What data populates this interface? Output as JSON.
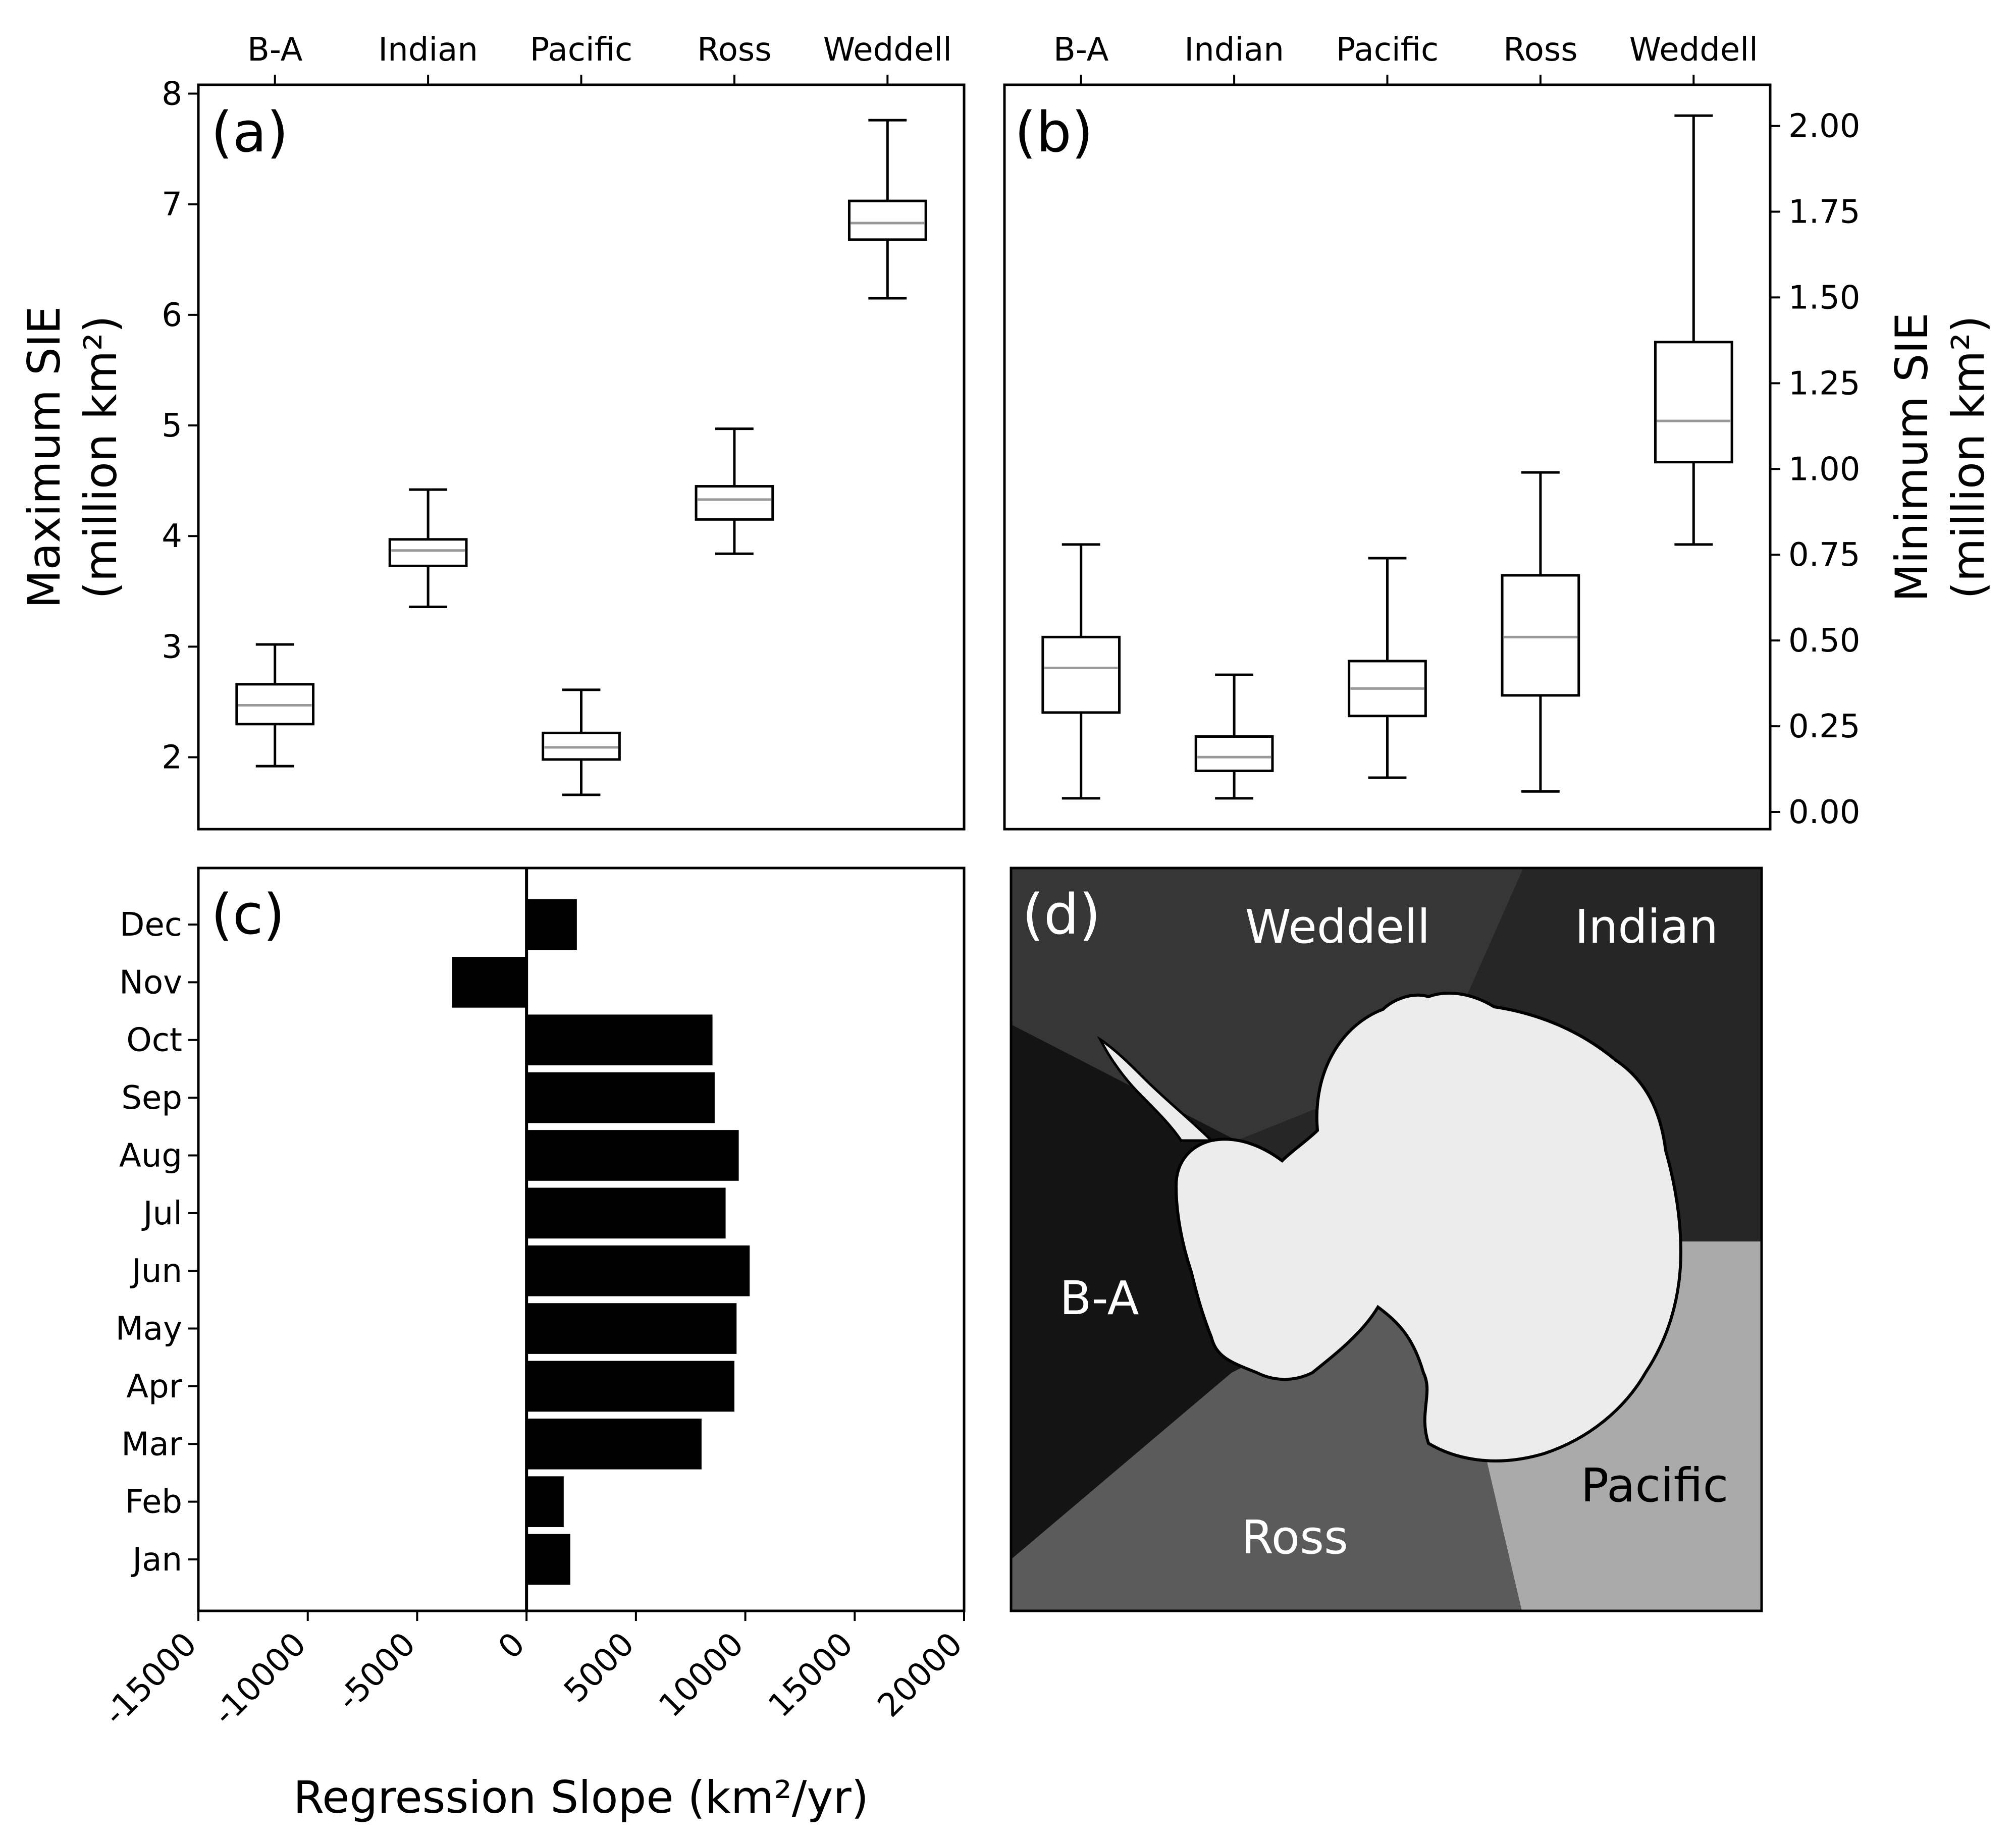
{
  "colors": {
    "box_edge": "#000000",
    "median": "#999999",
    "bar": "#000000",
    "map_land": "#ececec",
    "map_weddell": "#363636",
    "map_indian": "#262626",
    "map_ba": "#141414",
    "map_ross": "#5b5b5b",
    "map_pacific": "#aaaaaa"
  },
  "chart_data": [
    {
      "panel": "a",
      "type": "box",
      "panel_label": "(a)",
      "ylabel_line1": "Maximum SIE",
      "ylabel_line2": "(million km²)",
      "ylim": [
        1.35,
        8.08
      ],
      "yticks": [
        "2",
        "3",
        "4",
        "5",
        "6",
        "7",
        "8"
      ],
      "ytick_values": [
        2,
        3,
        4,
        5,
        6,
        7,
        8
      ],
      "categories": [
        "B-A",
        "Indian",
        "Pacific",
        "Ross",
        "Weddell"
      ],
      "boxes": [
        {
          "whislo": 1.92,
          "q1": 2.3,
          "med": 2.47,
          "q3": 2.66,
          "whishi": 3.02
        },
        {
          "whislo": 3.36,
          "q1": 3.73,
          "med": 3.87,
          "q3": 3.97,
          "whishi": 4.42
        },
        {
          "whislo": 1.66,
          "q1": 1.98,
          "med": 2.09,
          "q3": 2.22,
          "whishi": 2.61
        },
        {
          "whislo": 3.84,
          "q1": 4.15,
          "med": 4.33,
          "q3": 4.45,
          "whishi": 4.97
        },
        {
          "whislo": 6.15,
          "q1": 6.68,
          "med": 6.83,
          "q3": 7.03,
          "whishi": 7.76
        }
      ]
    },
    {
      "panel": "b",
      "type": "box",
      "panel_label": "(b)",
      "ylabel_line1": "Minimum SIE",
      "ylabel_line2": "(million km²)",
      "ylim": [
        -0.05,
        2.12
      ],
      "yticks": [
        "0.00",
        "0.25",
        "0.50",
        "0.75",
        "1.00",
        "1.25",
        "1.50",
        "1.75",
        "2.00"
      ],
      "ytick_values": [
        0,
        0.25,
        0.5,
        0.75,
        1.0,
        1.25,
        1.5,
        1.75,
        2.0
      ],
      "categories": [
        "B-A",
        "Indian",
        "Pacific",
        "Ross",
        "Weddell"
      ],
      "boxes": [
        {
          "whislo": 0.04,
          "q1": 0.29,
          "med": 0.42,
          "q3": 0.51,
          "whishi": 0.78
        },
        {
          "whislo": 0.04,
          "q1": 0.12,
          "med": 0.16,
          "q3": 0.22,
          "whishi": 0.4
        },
        {
          "whislo": 0.1,
          "q1": 0.28,
          "med": 0.36,
          "q3": 0.44,
          "whishi": 0.74
        },
        {
          "whislo": 0.06,
          "q1": 0.34,
          "med": 0.51,
          "q3": 0.69,
          "whishi": 0.99
        },
        {
          "whislo": 0.78,
          "q1": 1.02,
          "med": 1.14,
          "q3": 1.37,
          "whishi": 2.03
        }
      ]
    },
    {
      "panel": "c",
      "type": "bar",
      "orientation": "horizontal",
      "panel_label": "(c)",
      "xlabel": "Regression Slope (km²/yr)",
      "xlim": [
        -15000,
        20000
      ],
      "xticks": [
        "-15000",
        "-10000",
        "-5000",
        "0",
        "5000",
        "10000",
        "15000",
        "20000"
      ],
      "xtick_values": [
        -15000,
        -10000,
        -5000,
        0,
        5000,
        10000,
        15000,
        20000
      ],
      "categories": [
        "Jan",
        "Feb",
        "Mar",
        "Apr",
        "May",
        "Jun",
        "Jul",
        "Aug",
        "Sep",
        "Oct",
        "Nov",
        "Dec"
      ],
      "values": [
        2000,
        1700,
        8000,
        9500,
        9600,
        10200,
        9100,
        9700,
        8600,
        8500,
        -3400,
        2300
      ]
    }
  ],
  "map": {
    "panel_label": "(d)",
    "regions": [
      "Weddell",
      "Indian",
      "B-A",
      "Ross",
      "Pacific"
    ]
  }
}
